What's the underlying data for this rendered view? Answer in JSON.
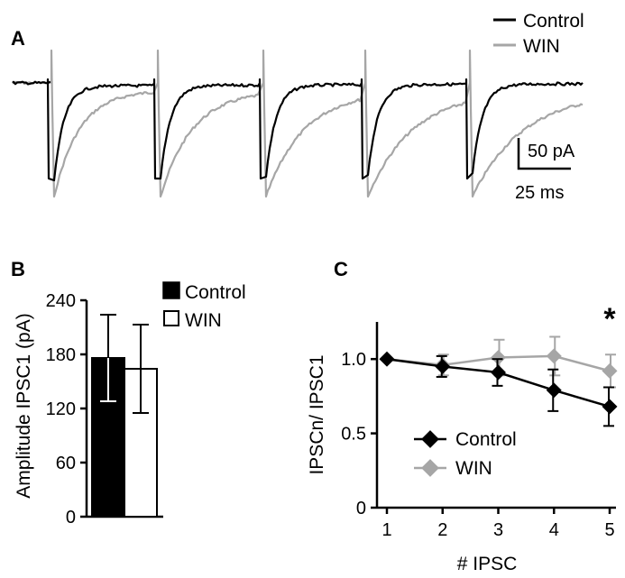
{
  "colors": {
    "control": "#000000",
    "win": "#a6a6a6",
    "win_bar": "#ffffff"
  },
  "panel_a": {
    "label": "A",
    "legend": [
      "Control",
      "WIN"
    ],
    "scale_bar": {
      "amplitude": "50 pA",
      "time": "25 ms"
    }
  },
  "panel_b": {
    "label": "B",
    "ylabel": "Amplitude IPSC1 (pA)",
    "legend": [
      "Control",
      "WIN"
    ]
  },
  "panel_c": {
    "label": "C",
    "xlabel": "# IPSC",
    "ylabel": "IPSCn/ IPSC1",
    "significance": "*",
    "legend": [
      "Control",
      "WIN"
    ]
  },
  "chart_data": [
    {
      "type": "bar",
      "panel": "B",
      "categories": [
        "Control",
        "WIN"
      ],
      "values": [
        176,
        164
      ],
      "errors": [
        48,
        49
      ],
      "ylabel": "Amplitude IPSC1 (pA)",
      "yticks": [
        0,
        60,
        120,
        180,
        240
      ],
      "ylim": [
        0,
        240
      ]
    },
    {
      "type": "line",
      "panel": "C",
      "x": [
        1,
        2,
        3,
        4,
        5
      ],
      "xticks": [
        1,
        2,
        3,
        4,
        5
      ],
      "series": [
        {
          "name": "Control",
          "values": [
            1.0,
            0.95,
            0.91,
            0.79,
            0.68
          ],
          "errors": [
            0.0,
            0.07,
            0.09,
            0.14,
            0.13
          ]
        },
        {
          "name": "WIN",
          "values": [
            1.0,
            0.96,
            1.01,
            1.02,
            0.92
          ],
          "errors": [
            0.0,
            0.07,
            0.12,
            0.13,
            0.11
          ]
        }
      ],
      "xlabel": "# IPSC",
      "ylabel": "IPSCn/ IPSC1",
      "yticks": [
        0,
        0.5,
        1.0
      ],
      "ytick_labels": [
        "0",
        "0.5",
        "1.0"
      ],
      "ylim": [
        0,
        1.25
      ],
      "xlim": [
        0.8,
        5.3
      ]
    }
  ]
}
